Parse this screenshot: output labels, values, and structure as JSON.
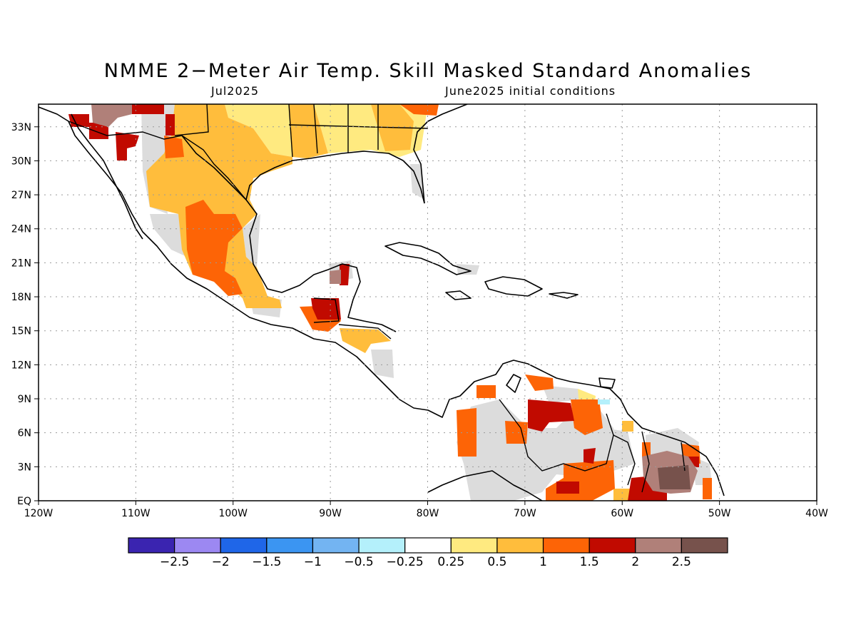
{
  "title": "NMME 2−Meter Air Temp. Skill Masked Standard Anomalies",
  "subtitle_left": "Jul2025",
  "subtitle_right": "June2025 initial conditions",
  "map": {
    "lon_range": [
      -120,
      -40
    ],
    "lat_range": [
      0,
      35
    ],
    "lon_ticks": [
      {
        "value": -120,
        "label": "120W"
      },
      {
        "value": -110,
        "label": "110W"
      },
      {
        "value": -100,
        "label": "100W"
      },
      {
        "value": -90,
        "label": "90W"
      },
      {
        "value": -80,
        "label": "80W"
      },
      {
        "value": -70,
        "label": "70W"
      },
      {
        "value": -60,
        "label": "60W"
      },
      {
        "value": -50,
        "label": "50W"
      },
      {
        "value": -40,
        "label": "40W"
      }
    ],
    "lat_ticks": [
      {
        "value": 0,
        "label": "EQ"
      },
      {
        "value": 3,
        "label": "3N"
      },
      {
        "value": 6,
        "label": "6N"
      },
      {
        "value": 9,
        "label": "9N"
      },
      {
        "value": 12,
        "label": "12N"
      },
      {
        "value": 15,
        "label": "15N"
      },
      {
        "value": 18,
        "label": "18N"
      },
      {
        "value": 21,
        "label": "21N"
      },
      {
        "value": 24,
        "label": "24N"
      },
      {
        "value": 27,
        "label": "27N"
      },
      {
        "value": 30,
        "label": "30N"
      },
      {
        "value": 33,
        "label": "33N"
      }
    ],
    "grid": true
  },
  "colorbar": {
    "colors": [
      "#3a24b0",
      "#9c88f2",
      "#1f66e8",
      "#3b95f2",
      "#73b4f2",
      "#b4f0fb",
      "#ffffff",
      "#ffea80",
      "#ffbd3c",
      "#fd6406",
      "#c10a00",
      "#b08079",
      "#77524c"
    ],
    "labels": [
      "−2.5",
      "−2",
      "−1.5",
      "−1",
      "−0.5",
      "−0.25",
      "0.25",
      "0.5",
      "1",
      "1.5",
      "2",
      "2.5"
    ]
  },
  "legend_colors": {
    "masked": "#dcdcdc",
    "land_outline": "#000000"
  }
}
